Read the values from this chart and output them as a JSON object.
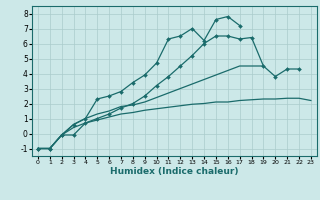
{
  "title": "",
  "xlabel": "Humidex (Indice chaleur)",
  "ylabel": "",
  "xlim": [
    -0.5,
    23.5
  ],
  "ylim": [
    -1.5,
    8.5
  ],
  "xticks": [
    0,
    1,
    2,
    3,
    4,
    5,
    6,
    7,
    8,
    9,
    10,
    11,
    12,
    13,
    14,
    15,
    16,
    17,
    18,
    19,
    20,
    21,
    22,
    23
  ],
  "yticks": [
    -1,
    0,
    1,
    2,
    3,
    4,
    5,
    6,
    7,
    8
  ],
  "bg_color": "#cce8e8",
  "line_color": "#1a6b6b",
  "grid_color": "#aacccc",
  "lines": [
    {
      "x": [
        0,
        1,
        2,
        3,
        4,
        5,
        6,
        7,
        8,
        9,
        10,
        11,
        12,
        13,
        14,
        15,
        16,
        17,
        18,
        19,
        20,
        21,
        22
      ],
      "y": [
        -1,
        -1,
        -0.1,
        -0.1,
        0.7,
        1.0,
        1.3,
        1.7,
        2.0,
        2.5,
        3.2,
        3.8,
        4.5,
        5.2,
        6.0,
        6.5,
        6.5,
        6.3,
        6.4,
        4.5,
        3.8,
        4.3,
        4.3
      ],
      "marker": "D",
      "markersize": 2.0
    },
    {
      "x": [
        0,
        1,
        2,
        3,
        4,
        5,
        6,
        7,
        8,
        9,
        10,
        11,
        12,
        13,
        14,
        15,
        16,
        17
      ],
      "y": [
        -1,
        -1,
        -0.1,
        0.6,
        1.0,
        2.3,
        2.5,
        2.8,
        3.4,
        3.9,
        4.7,
        6.3,
        6.5,
        7.0,
        6.2,
        7.6,
        7.8,
        7.2
      ],
      "marker": "D",
      "markersize": 2.0
    },
    {
      "x": [
        0,
        1,
        2,
        3,
        4,
        5,
        6,
        7,
        8,
        9,
        10,
        11,
        12,
        13,
        14,
        15,
        16,
        17,
        18,
        19
      ],
      "y": [
        -1,
        -1,
        -0.1,
        0.6,
        1.0,
        1.3,
        1.5,
        1.8,
        1.9,
        2.1,
        2.4,
        2.7,
        3.0,
        3.3,
        3.6,
        3.9,
        4.2,
        4.5,
        4.5,
        4.5
      ],
      "marker": null,
      "markersize": 0
    },
    {
      "x": [
        0,
        1,
        2,
        3,
        4,
        5,
        6,
        7,
        8,
        9,
        10,
        11,
        12,
        13,
        14,
        15,
        16,
        17,
        18,
        19,
        20,
        21,
        22,
        23
      ],
      "y": [
        -1,
        -1,
        -0.1,
        0.4,
        0.7,
        0.9,
        1.1,
        1.3,
        1.4,
        1.55,
        1.65,
        1.75,
        1.85,
        1.95,
        2.0,
        2.1,
        2.1,
        2.2,
        2.25,
        2.3,
        2.3,
        2.35,
        2.35,
        2.2
      ],
      "marker": null,
      "markersize": 0
    }
  ]
}
